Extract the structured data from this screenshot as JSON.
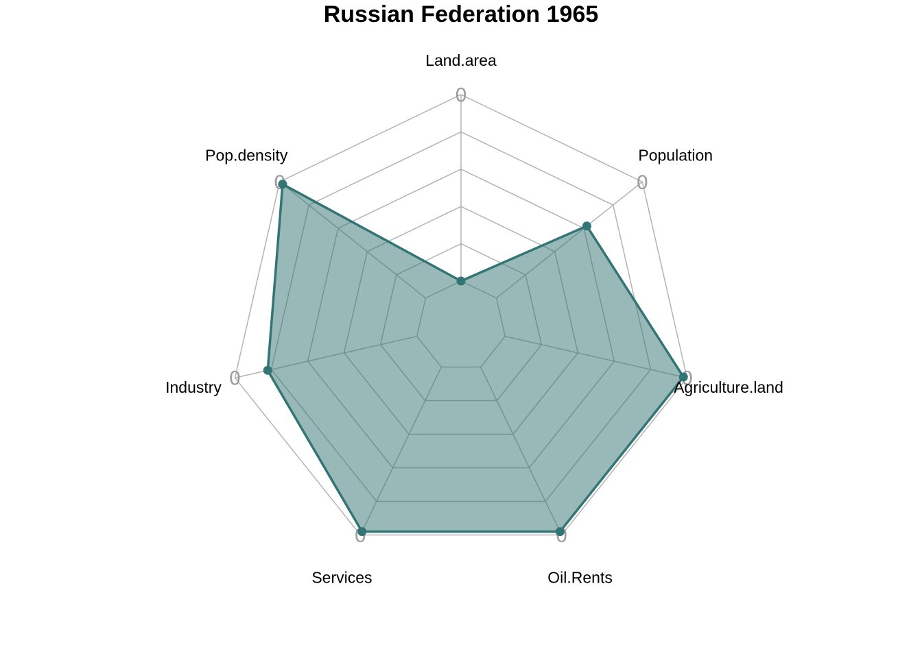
{
  "chart_data": {
    "type": "radar",
    "title": "Russian Federation 1965",
    "axes": [
      "Land.area",
      "Population",
      "Agriculture.land",
      "Oil.Rents",
      "Services",
      "Industry",
      "Pop.density"
    ],
    "axis_tick_label": "0",
    "range": [
      0,
      1
    ],
    "grid_levels": 5,
    "grid": true,
    "series": [
      {
        "values": [
          0.0,
          0.62,
          0.98,
          0.98,
          0.98,
          0.82,
          0.98
        ],
        "color": "#337474",
        "fill_color": "#337474",
        "fill_opacity": 0.5
      }
    ]
  }
}
